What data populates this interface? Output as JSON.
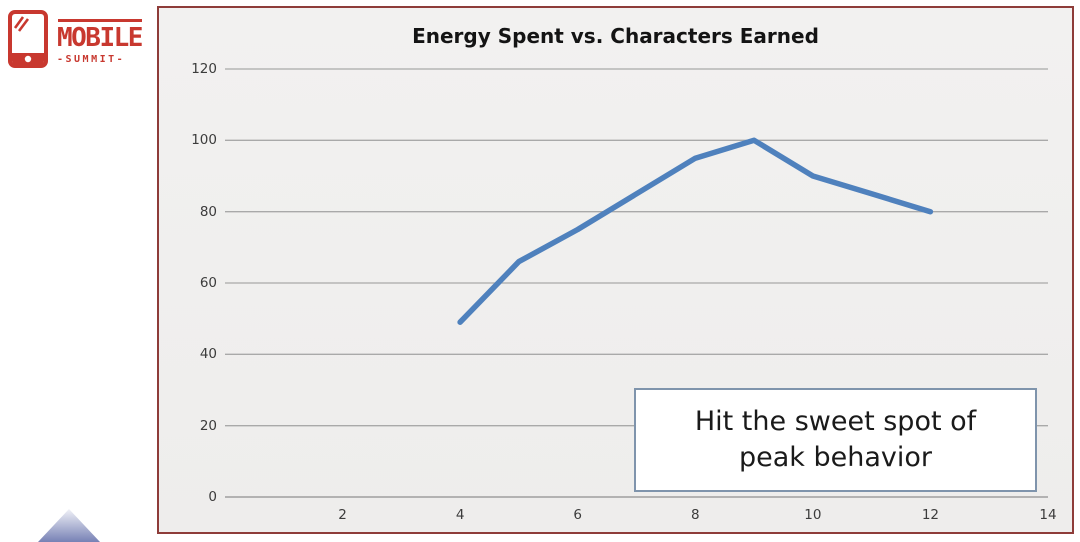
{
  "logo": {
    "title": "MOBILE",
    "subtitle": "-SUMMIT-",
    "color": "#c8382f"
  },
  "chart_data": {
    "type": "line",
    "title": "Energy Spent vs. Characters Earned",
    "xlabel": "",
    "ylabel": "",
    "xlim": [
      0,
      14
    ],
    "ylim": [
      0,
      120
    ],
    "x_ticks": [
      2,
      4,
      6,
      8,
      10,
      12,
      14
    ],
    "y_ticks": [
      0,
      20,
      40,
      60,
      80,
      100,
      120
    ],
    "grid": "horizontal",
    "legend": "none",
    "series": [
      {
        "name": "Characters Earned",
        "color": "#4f81bd",
        "points": [
          [
            4,
            49
          ],
          [
            5,
            66
          ],
          [
            6,
            75
          ],
          [
            7,
            85
          ],
          [
            8,
            95
          ],
          [
            9,
            100
          ],
          [
            10,
            90
          ],
          [
            11,
            85
          ],
          [
            12,
            80
          ]
        ]
      }
    ],
    "annotation": "Hit the sweet spot of peak behavior"
  },
  "annotation": {
    "line1": "Hit the sweet spot of",
    "line2": "peak behavior"
  },
  "colors": {
    "frame_border": "#8e3c39",
    "chart_background": "#f0efee",
    "gridline": "#a9a9a9",
    "axis_line": "#8f8f8f",
    "series_line": "#4f81bd",
    "callout_border": "#7f94ac",
    "logo_red": "#c8382f",
    "triangle_top": "#f0f1f7",
    "triangle_bottom": "#7781b5"
  }
}
